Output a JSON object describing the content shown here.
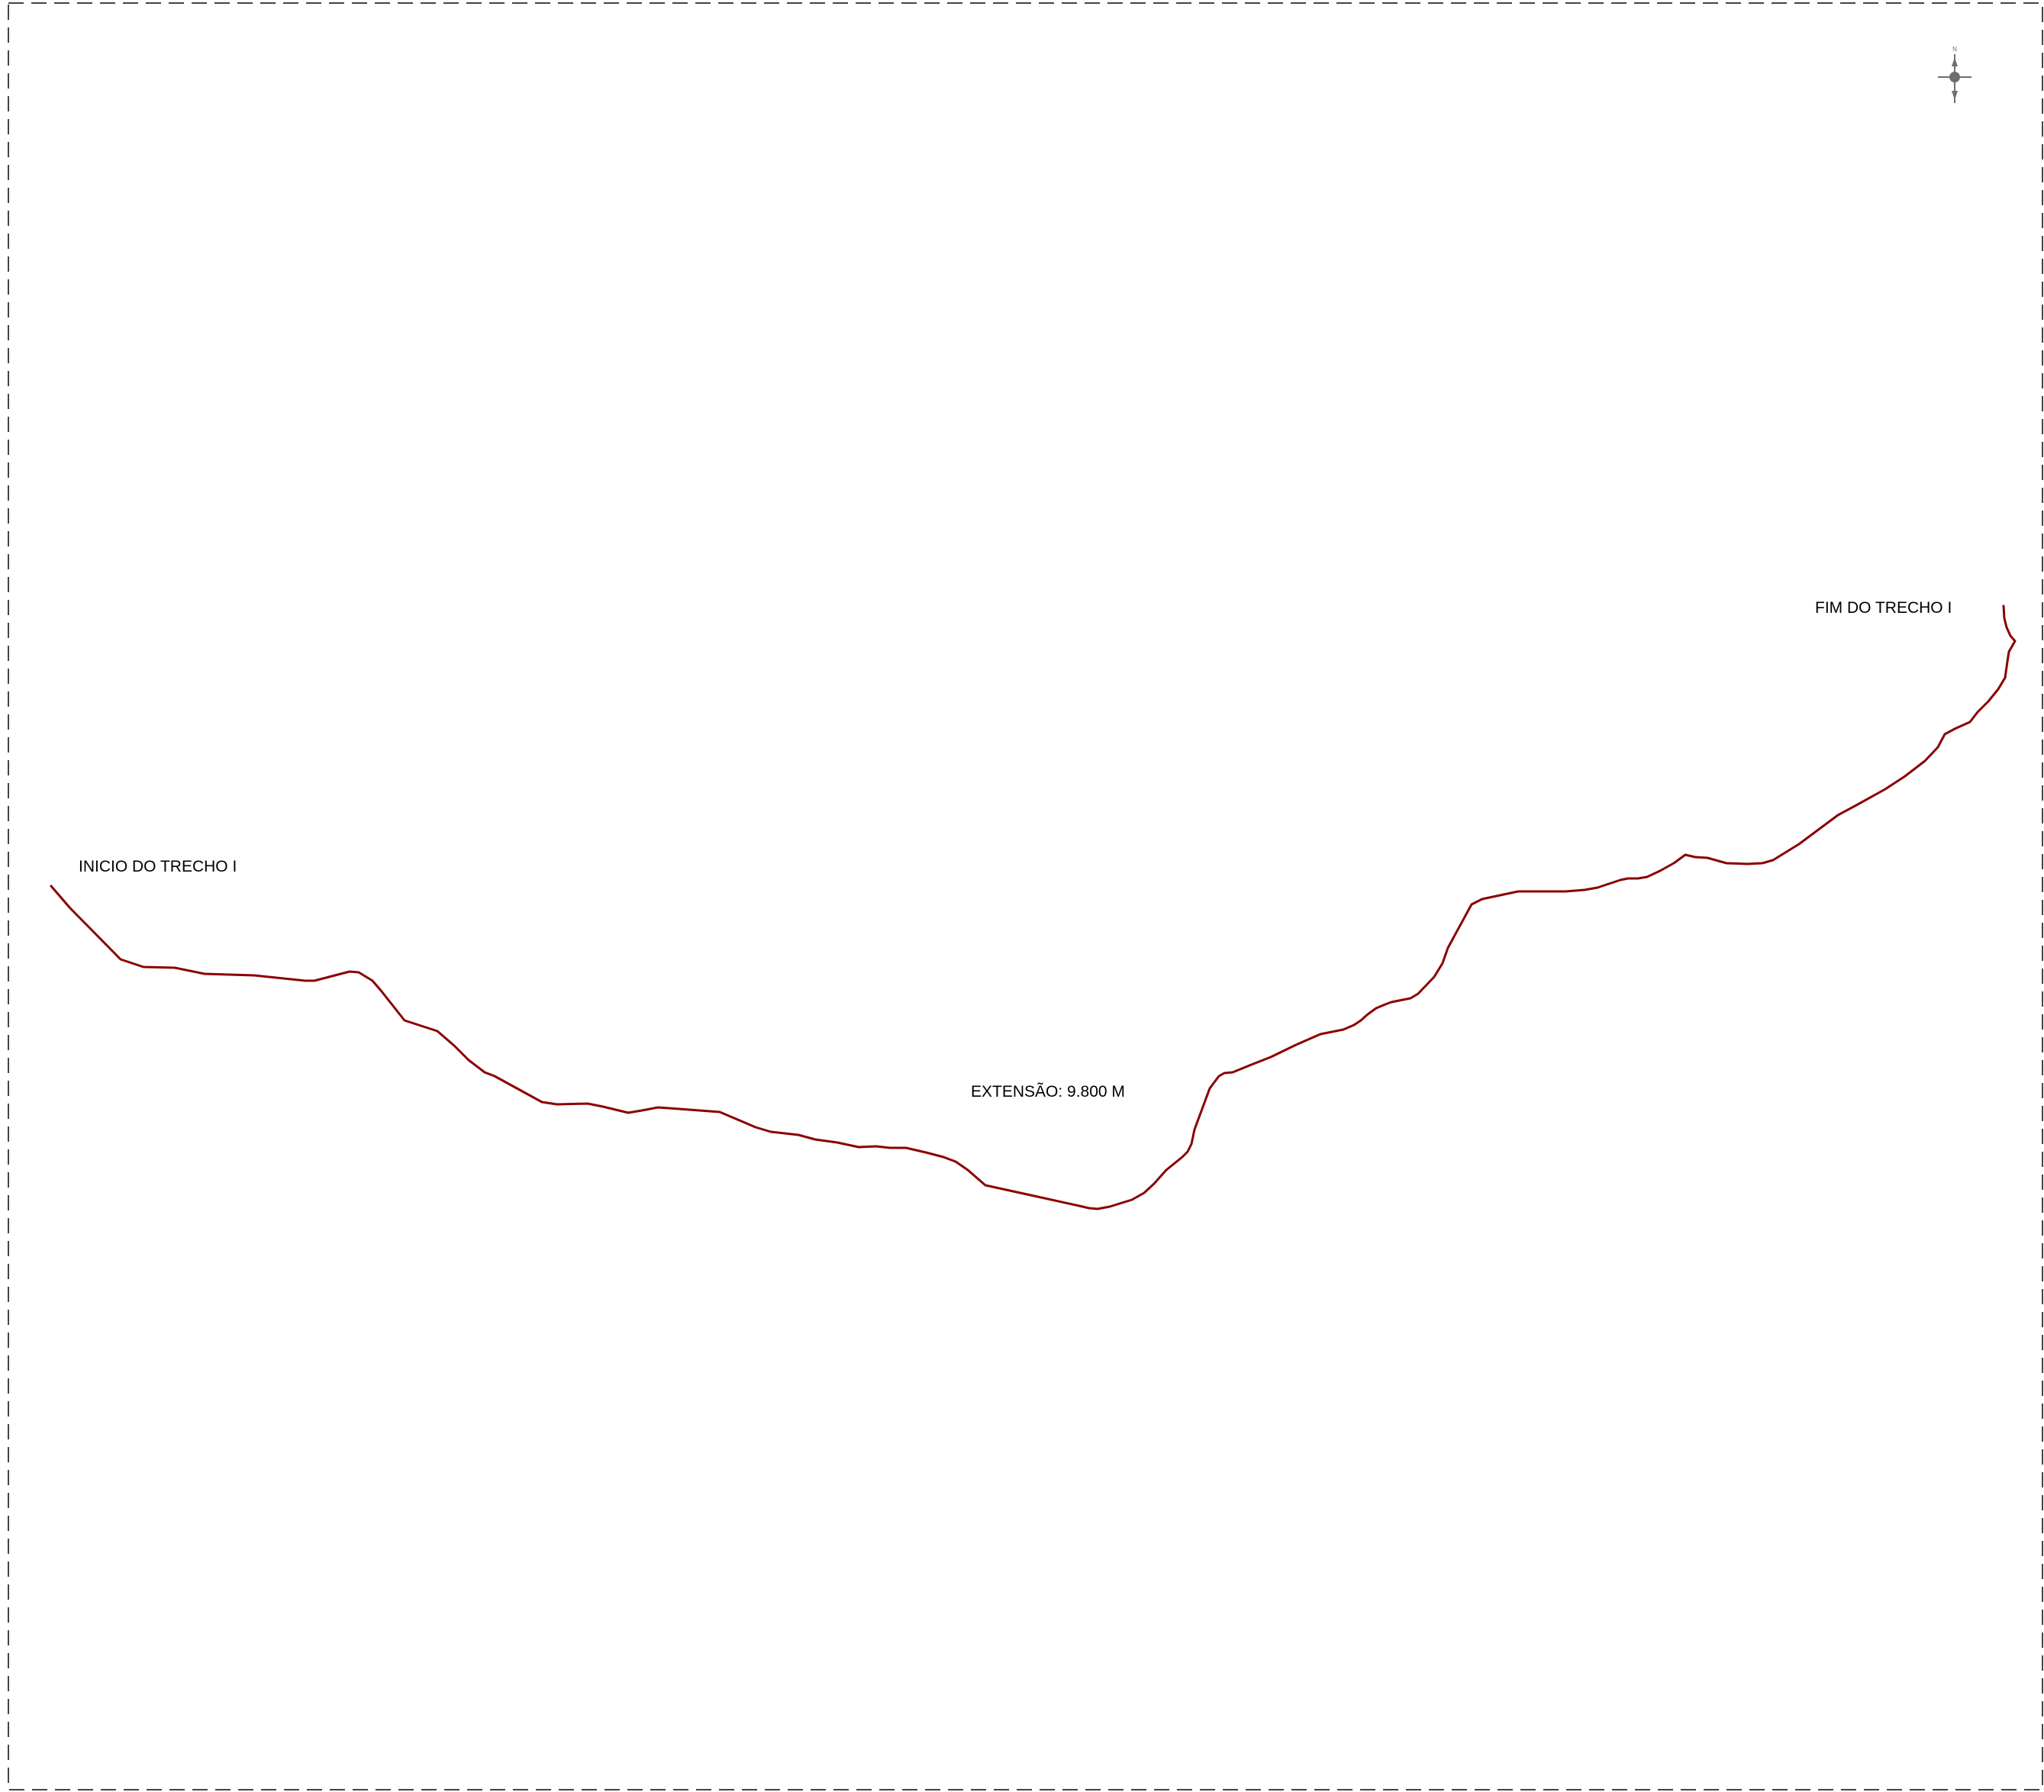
{
  "map": {
    "route_color": "#8b0000",
    "frame_color": "#444444",
    "compass_color": "#6e6e6e",
    "labels": {
      "start": "INICIO DO TRECHO I",
      "end": "FIM DO TRECHO I",
      "length": "EXTENSÃO: 9.800 M"
    },
    "compass": {
      "icon": "north-arrow-icon",
      "north_letter": "N"
    }
  }
}
